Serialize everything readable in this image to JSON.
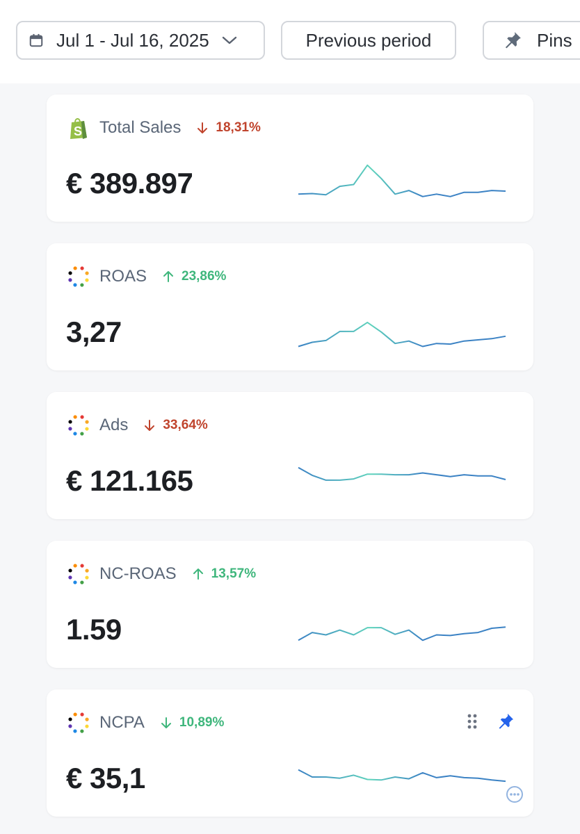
{
  "toolbar": {
    "date_range": "Jul 1 - Jul 16, 2025",
    "compare_label": "Previous period",
    "pins_label": "Pins"
  },
  "colors": {
    "down": "#c0442d",
    "up": "#3fb67c",
    "spark_blue": "#3b82c4",
    "spark_teal": "#5fd3bc",
    "pin_blue": "#2563eb"
  },
  "metrics": [
    {
      "name": "Total Sales",
      "source_icon": "shopify-icon",
      "trend": "down",
      "change": "18,31%",
      "value": "€ 389.897",
      "sparkline": [
        1.0,
        1.1,
        0.9,
        2.3,
        2.6,
        5.8,
        3.6,
        1.0,
        1.6,
        0.6,
        1.0,
        0.6,
        1.3,
        1.3,
        1.6,
        1.5
      ]
    },
    {
      "name": "ROAS",
      "source_icon": "multicolor-dots-icon",
      "trend": "up",
      "change": "23,86%",
      "value": "3,27",
      "sparkline": [
        0.4,
        1.1,
        1.4,
        2.9,
        2.9,
        4.4,
        2.8,
        0.9,
        1.3,
        0.4,
        0.9,
        0.8,
        1.3,
        1.5,
        1.7,
        2.1
      ]
    },
    {
      "name": "Ads",
      "source_icon": "multicolor-dots-icon",
      "trend": "down",
      "change": "33,64%",
      "value": "€ 121.165",
      "sparkline": [
        5.0,
        3.7,
        2.9,
        2.9,
        3.1,
        3.9,
        3.9,
        3.8,
        3.8,
        4.1,
        3.8,
        3.5,
        3.8,
        3.6,
        3.6,
        3.0
      ]
    },
    {
      "name": "NC-ROAS",
      "source_icon": "multicolor-dots-icon",
      "trend": "up",
      "change": "13,57%",
      "value": "1.59",
      "sparkline": [
        1.0,
        2.3,
        1.9,
        2.7,
        1.9,
        3.1,
        3.1,
        2.0,
        2.7,
        1.0,
        1.9,
        1.8,
        2.1,
        2.3,
        3.0,
        3.2
      ]
    },
    {
      "name": "NCPA",
      "source_icon": "multicolor-dots-icon",
      "trend": "down",
      "change": "10,89%",
      "value": "€ 35,1",
      "sparkline": [
        4.2,
        3.0,
        3.0,
        2.8,
        3.3,
        2.6,
        2.5,
        3.0,
        2.7,
        3.7,
        2.9,
        3.2,
        2.9,
        2.8,
        2.5,
        2.3
      ],
      "pinned": true
    }
  ]
}
